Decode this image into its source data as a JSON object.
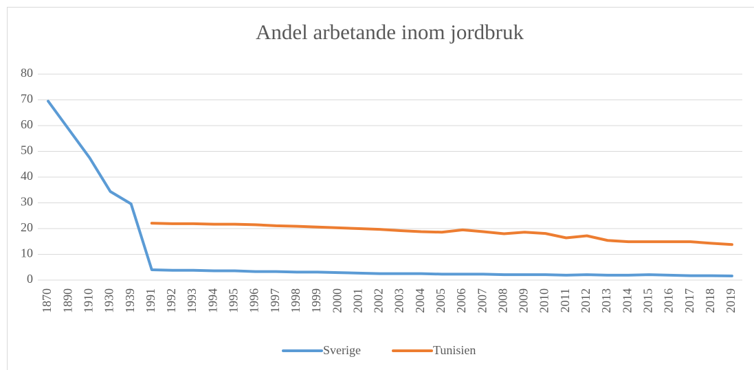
{
  "chart_data": {
    "type": "line",
    "title": "Andel arbetande inom jordbruk",
    "categories": [
      "1870",
      "1890",
      "1910",
      "1930",
      "1939",
      "1991",
      "1992",
      "1993",
      "1994",
      "1995",
      "1996",
      "1997",
      "1998",
      "1999",
      "2000",
      "2001",
      "2002",
      "2003",
      "2004",
      "2005",
      "2006",
      "2007",
      "2008",
      "2009",
      "2010",
      "2011",
      "2012",
      "2013",
      "2014",
      "2015",
      "2016",
      "2017",
      "2018",
      "2019"
    ],
    "series": [
      {
        "name": "Sverige",
        "color": "#5b9bd5",
        "values": [
          69.5,
          58.5,
          47.5,
          34.4,
          29.6,
          4.0,
          3.8,
          3.8,
          3.6,
          3.6,
          3.3,
          3.3,
          3.1,
          3.1,
          2.9,
          2.7,
          2.5,
          2.5,
          2.5,
          2.3,
          2.3,
          2.3,
          2.1,
          2.1,
          2.1,
          1.9,
          2.1,
          1.9,
          1.9,
          2.1,
          1.9,
          1.7,
          1.7,
          1.6
        ]
      },
      {
        "name": "Tunisien",
        "color": "#ed7d31",
        "values": [
          null,
          null,
          null,
          null,
          null,
          22.1,
          21.9,
          21.9,
          21.7,
          21.7,
          21.5,
          21.1,
          20.9,
          20.6,
          20.3,
          20.0,
          19.7,
          19.2,
          18.8,
          18.6,
          19.5,
          18.8,
          18.0,
          18.6,
          18.1,
          16.4,
          17.2,
          15.4,
          14.9,
          14.9,
          14.9,
          14.9,
          14.3,
          13.8
        ]
      }
    ],
    "ylim": [
      0,
      80
    ],
    "yticks": [
      0,
      10,
      20,
      30,
      40,
      50,
      60,
      70,
      80
    ],
    "grid": true,
    "legend": "bottom"
  }
}
